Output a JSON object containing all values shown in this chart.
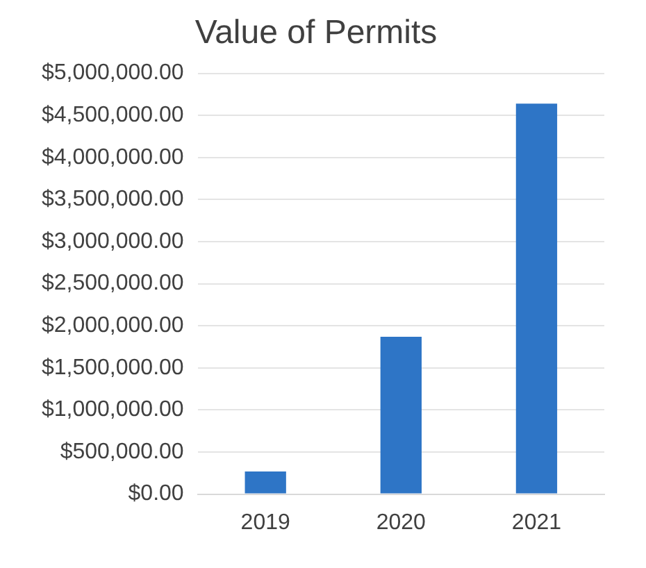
{
  "chart_data": {
    "type": "bar",
    "title": "Value of Permits",
    "categories": [
      "2019",
      "2020",
      "2021"
    ],
    "values": [
      270000,
      1870000,
      4640000
    ],
    "color": "#2e75c6",
    "ylim": [
      0,
      5000000
    ],
    "yticks": [
      {
        "value": 0,
        "label": "$0.00"
      },
      {
        "value": 500000,
        "label": "$500,000.00"
      },
      {
        "value": 1000000,
        "label": "$1,000,000.00"
      },
      {
        "value": 1500000,
        "label": "$1,500,000.00"
      },
      {
        "value": 2000000,
        "label": "$2,000,000.00"
      },
      {
        "value": 2500000,
        "label": "$2,500,000.00"
      },
      {
        "value": 3000000,
        "label": "$3,000,000.00"
      },
      {
        "value": 3500000,
        "label": "$3,500,000.00"
      },
      {
        "value": 4000000,
        "label": "$4,000,000.00"
      },
      {
        "value": 4500000,
        "label": "$4,500,000.00"
      },
      {
        "value": 5000000,
        "label": "$5,000,000.00"
      }
    ],
    "grid": "y"
  }
}
